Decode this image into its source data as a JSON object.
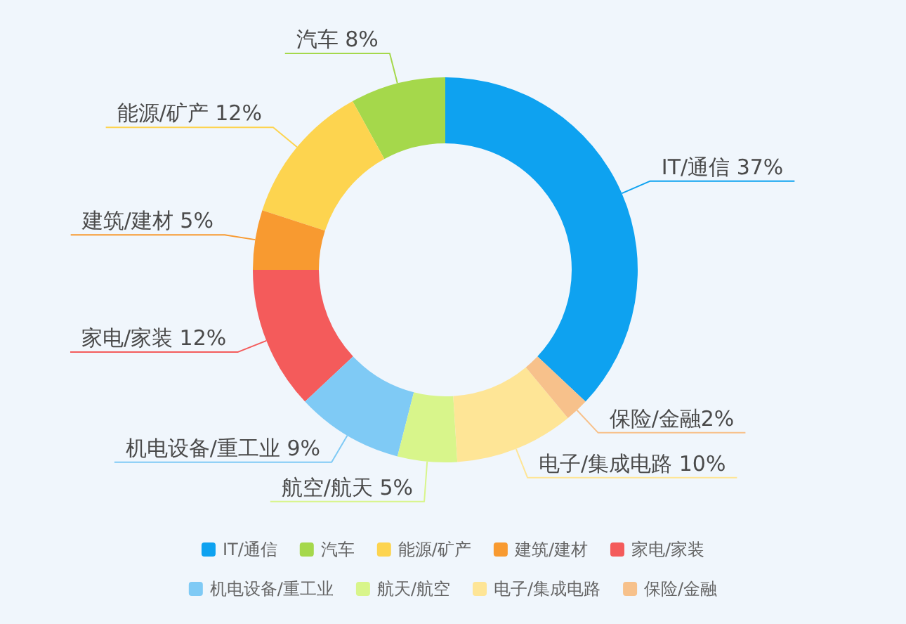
{
  "chart_data": {
    "type": "donut",
    "categories": [
      "IT/通信",
      "汽车",
      "能源/矿产",
      "建筑/建材",
      "家电/家装",
      "机电设备/重工业",
      "航天/航空",
      "电子/集成电路",
      "保险/金融"
    ],
    "values": [
      37,
      8,
      12,
      5,
      12,
      9,
      5,
      10,
      2
    ],
    "colors": [
      "#0ea2f0",
      "#a5d84b",
      "#fdd44f",
      "#f89a30",
      "#f45b5b",
      "#7fcaf5",
      "#d8f58b",
      "#fee596",
      "#f7c18b"
    ],
    "value_labels": [
      "IT/通信 37%",
      "汽车 8%",
      "能源/矿产 12%",
      "建筑/建材 5%",
      "家电/家装 12%",
      "机电设备/重工业 9%",
      "航空/航天 5%",
      "电子/集成电路 10%",
      "保险/金融2%"
    ],
    "legend": "bottom"
  }
}
